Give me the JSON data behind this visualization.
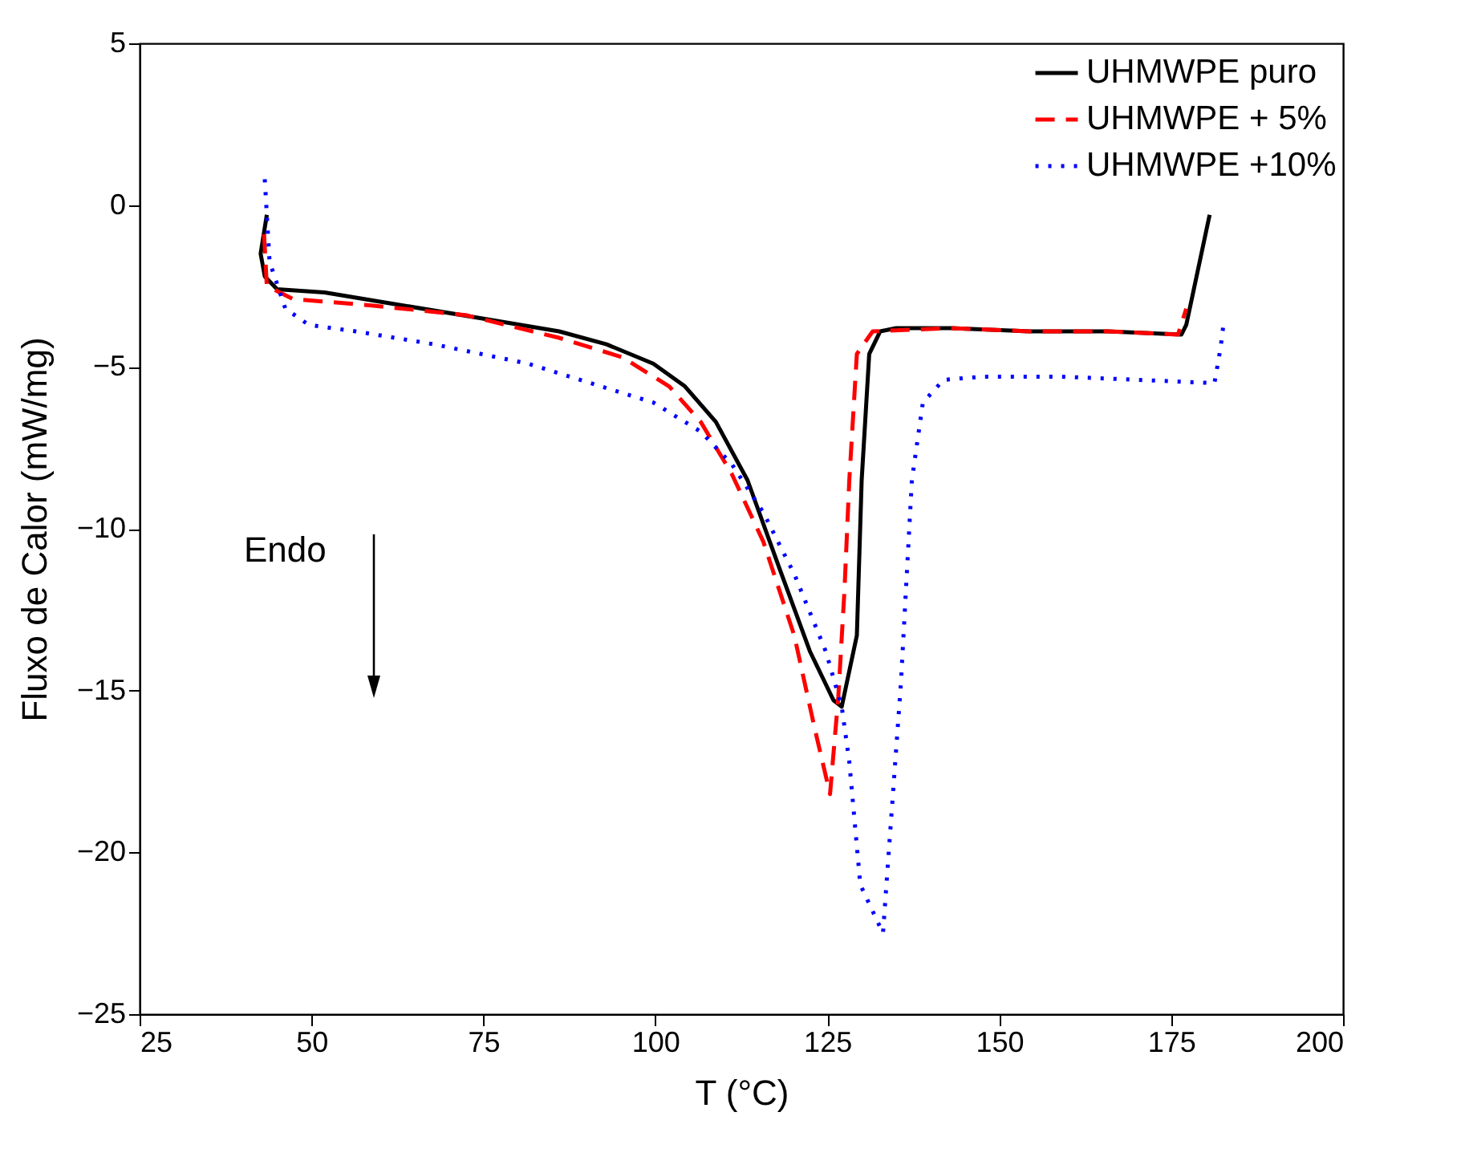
{
  "chart_data": {
    "type": "line",
    "xlabel": "T (°C)",
    "ylabel": "Fluxo de Calor (mW/mg)",
    "xlim": [
      25,
      200
    ],
    "xticks": [
      25,
      50,
      75,
      100,
      125,
      150,
      175,
      200
    ],
    "ylim": [
      -25,
      5
    ],
    "yticks": [
      -25,
      -20,
      -15,
      -10,
      -5,
      0,
      5
    ],
    "grid": false,
    "legend": "top right",
    "annotations": [
      "Endo"
    ],
    "series": [
      {
        "name": "UHMWPE puro",
        "color": "#000000",
        "line_style": "solid",
        "x": [
          43.5,
          42.6,
          43.2,
          45,
          51.9,
          63.3,
          74.7,
          86,
          92.9,
          99.7,
          104.3,
          108.8,
          113.4,
          118,
          122.5,
          125.9,
          127.1,
          129.3,
          130,
          131.1,
          132.7,
          135,
          143,
          154.4,
          165.8,
          176.5,
          177.2,
          180.6
        ],
        "values": [
          -0.3,
          -1.5,
          -2.2,
          -2.6,
          -2.7,
          -3.1,
          -3.5,
          -3.9,
          -4.3,
          -4.9,
          -5.6,
          -6.7,
          -8.5,
          -11.2,
          -13.8,
          -15.3,
          -15.5,
          -13.3,
          -8.5,
          -4.6,
          -3.9,
          -3.8,
          -3.8,
          -3.9,
          -3.9,
          -4.0,
          -3.7,
          -0.3
        ]
      },
      {
        "name": "UHMWPE + 5%",
        "color": "#ff0000",
        "line_style": "dashed",
        "x": [
          43.1,
          43.5,
          47.3,
          58.7,
          72.4,
          86,
          95.2,
          102,
          106.6,
          111.1,
          115.7,
          120.2,
          123.2,
          125.4,
          126.6,
          127.5,
          128.2,
          129.3,
          131.6,
          143,
          154.4,
          165.8,
          176,
          177.2
        ],
        "values": [
          -0.9,
          -2.5,
          -2.9,
          -3.1,
          -3.4,
          -4.1,
          -4.7,
          -5.6,
          -6.7,
          -8.3,
          -10.4,
          -13.3,
          -16.2,
          -18.2,
          -15.2,
          -11.9,
          -8.5,
          -4.6,
          -3.9,
          -3.8,
          -3.9,
          -3.9,
          -4.0,
          -3.2
        ]
      },
      {
        "name": "UHMWPE +10%",
        "color": "#0000ff",
        "line_style": "dotted",
        "x": [
          43.2,
          43.9,
          46.2,
          49.6,
          56.4,
          67.8,
          81.5,
          90.6,
          99.7,
          106.6,
          111.1,
          115.7,
          120.2,
          124.8,
          127.1,
          128.2,
          129.8,
          133.1,
          133.9,
          135.7,
          137.3,
          138.9,
          141.9,
          147.6,
          159,
          170.3,
          181.3,
          182.2,
          182.6
        ],
        "values": [
          0.8,
          -1.75,
          -3.2,
          -3.7,
          -3.9,
          -4.3,
          -4.9,
          -5.5,
          -6.1,
          -7,
          -8,
          -9.5,
          -11.4,
          -13.8,
          -15.5,
          -17.2,
          -21,
          -22.5,
          -20.1,
          -14.8,
          -8.5,
          -6.1,
          -5.4,
          -5.3,
          -5.3,
          -5.4,
          -5.5,
          -4.4,
          -3.7
        ]
      }
    ]
  }
}
